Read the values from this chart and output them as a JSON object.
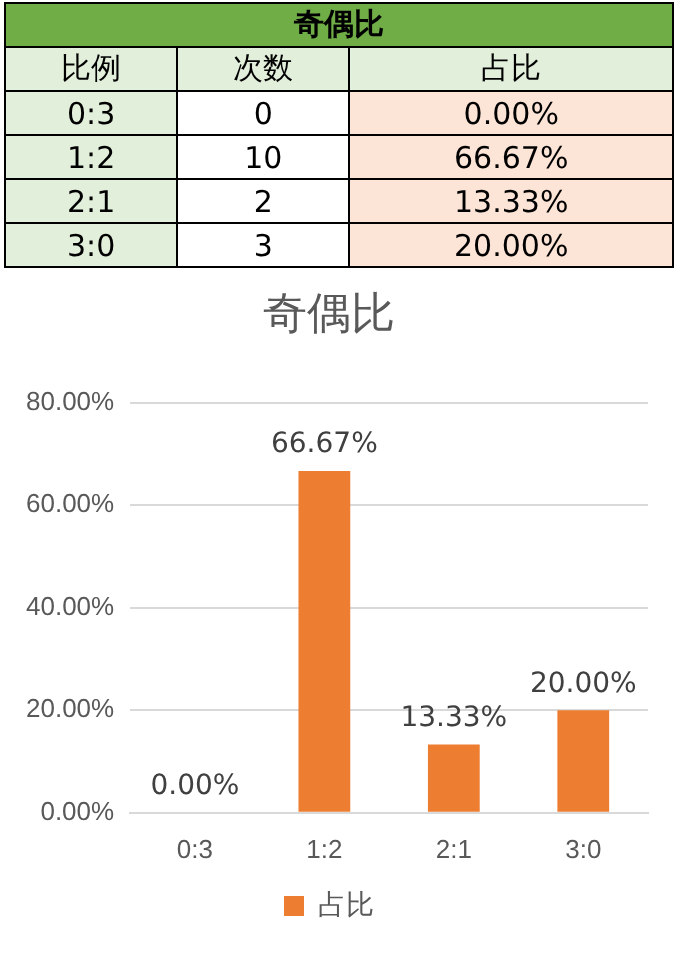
{
  "chart_data": [
    {
      "type": "other",
      "title": "奇偶比",
      "xlabel": "比例",
      "categories": [
        "0:3",
        "1:2",
        "2:1",
        "3:0"
      ],
      "series": [
        {
          "name": "次数",
          "values": [
            0,
            10,
            2,
            3
          ],
          "value_labels": [
            "0",
            "10",
            "2",
            "3"
          ]
        },
        {
          "name": "占比",
          "color": "#fce4d6",
          "values": [
            0,
            66.67,
            13.33,
            20
          ],
          "value_labels": [
            "0.00%",
            "66.67%",
            "13.33%",
            "20.00%"
          ]
        }
      ]
    },
    {
      "type": "bar",
      "title": "奇偶比",
      "categories": [
        "0:3",
        "1:2",
        "2:1",
        "3:0"
      ],
      "series": [
        {
          "name": "占比",
          "color": "#ed7d31",
          "values": [
            0,
            66.67,
            13.33,
            20
          ],
          "value_labels": [
            "0.00%",
            "66.67%",
            "13.33%",
            "20.00%"
          ]
        }
      ],
      "ylim": [
        0,
        80
      ],
      "yticks": [
        {
          "value": 0,
          "label": "0.00%"
        },
        {
          "value": 20,
          "label": "20.00%"
        },
        {
          "value": 40,
          "label": "40.00%"
        },
        {
          "value": 60,
          "label": "60.00%"
        },
        {
          "value": 80,
          "label": "80.00%"
        }
      ],
      "grid": "y",
      "legend": "bottom"
    }
  ]
}
